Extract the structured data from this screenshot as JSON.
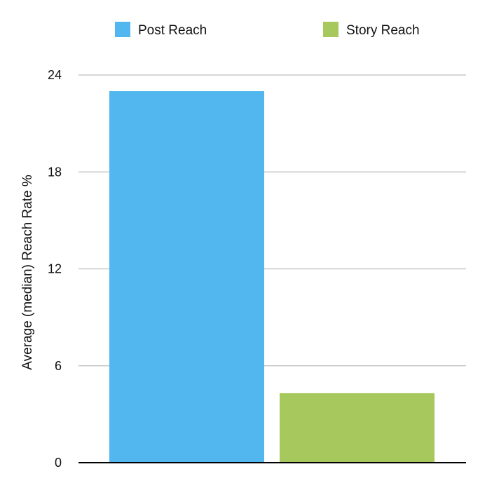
{
  "chart_data": {
    "type": "bar",
    "title": "",
    "xlabel": "",
    "ylabel": "Average (median) Reach Rate %",
    "ylim": [
      0,
      24
    ],
    "yticks": [
      0,
      6,
      12,
      18,
      24
    ],
    "grid": true,
    "legend_position": "top",
    "series": [
      {
        "name": "Post Reach",
        "value": 23,
        "color": "#51b7ee"
      },
      {
        "name": "Story Reach",
        "value": 4.3,
        "color": "#a7c85c"
      }
    ],
    "gridline_color": "#c8c8c8",
    "axis_color": "#000000"
  }
}
